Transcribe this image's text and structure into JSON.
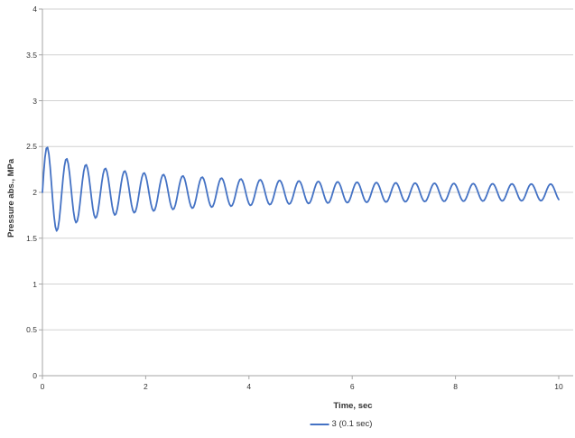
{
  "window": {
    "background": "#ffffff"
  },
  "chart_data": {
    "type": "line",
    "title": "",
    "xlabel": "Time, sec",
    "ylabel": "Pressure abs., MPa",
    "xlim": [
      0,
      10.28
    ],
    "ylim": [
      0,
      4
    ],
    "xticks": {
      "values": [
        0,
        2,
        4,
        6,
        8,
        10
      ],
      "labels": [
        "0",
        "2",
        "4",
        "6",
        "8",
        "10"
      ]
    },
    "yticks": {
      "values": [
        0,
        0.5,
        1,
        1.5,
        2,
        2.5,
        3,
        3.5,
        4
      ],
      "labels": [
        "0",
        "0.5",
        "1",
        "1.5",
        "2",
        "2.5",
        "3",
        "3.5",
        "4"
      ]
    },
    "grid": {
      "horizontal": true,
      "vertical": false,
      "color": "#d2d2d2"
    },
    "axis_color": "#a6a6a6",
    "text_color": "#333333",
    "legend": {
      "position": "bottom-center",
      "entries": [
        {
          "label": "3 (0.1 sec)",
          "color": "#4472c4"
        }
      ]
    },
    "series": [
      {
        "name": "3 (0.1 sec)",
        "color": "#4472c4",
        "line_width": 1.8,
        "shape": "damped-oscillation-about-baseline",
        "start_point_t_MPa": [
          0,
          2.0
        ],
        "end_t": 10,
        "model": {
          "baseline_MPa": 2.0,
          "period_sec": 0.375,
          "waveform": "sine",
          "t_start": 0,
          "t_end": 10,
          "dt": 0.025,
          "envelope_const": 0.085,
          "envelope_terms": [
            {
              "amp": 0.27,
              "tau": 2.6
            },
            {
              "amp": 0.19,
              "tau": 0.4
            }
          ]
        },
        "observed_peaks_t_MPa": [
          [
            0.09,
            2.52
          ],
          [
            0.47,
            2.35
          ],
          [
            0.85,
            2.24
          ],
          [
            1.27,
            2.33
          ],
          [
            1.65,
            2.26
          ],
          [
            2.03,
            2.25
          ],
          [
            2.45,
            2.19
          ],
          [
            2.85,
            2.17
          ],
          [
            3.25,
            2.18
          ],
          [
            4.0,
            2.15
          ],
          [
            5.0,
            2.13
          ],
          [
            6.0,
            2.11
          ],
          [
            7.0,
            2.11
          ],
          [
            8.0,
            2.1
          ],
          [
            9.0,
            2.09
          ],
          [
            9.95,
            2.09
          ]
        ],
        "observed_troughs_t_MPa": [
          [
            0.28,
            1.58
          ],
          [
            0.66,
            1.71
          ],
          [
            1.05,
            1.67
          ],
          [
            1.45,
            1.69
          ],
          [
            2.1,
            1.77
          ],
          [
            2.85,
            1.81
          ],
          [
            4.0,
            1.85
          ],
          [
            5.0,
            1.87
          ],
          [
            6.0,
            1.88
          ],
          [
            7.0,
            1.89
          ],
          [
            8.0,
            1.9
          ],
          [
            9.0,
            1.9
          ],
          [
            10.0,
            1.91
          ]
        ]
      }
    ]
  }
}
